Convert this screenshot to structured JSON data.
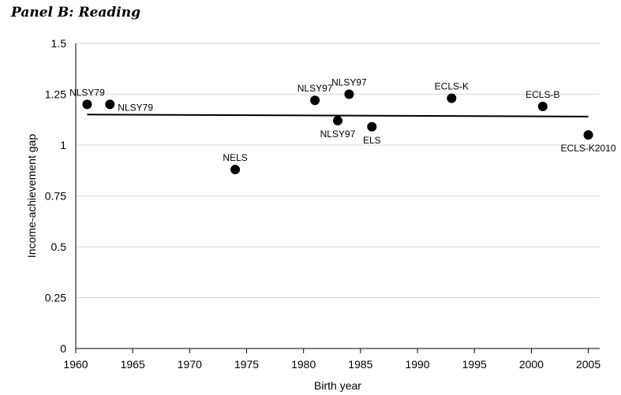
{
  "panel_title": "Panel B: Reading",
  "chart_data": {
    "type": "scatter",
    "xlabel": "Birth year",
    "ylabel": "Income-achievement gap",
    "xlim": [
      1960,
      2006
    ],
    "ylim": [
      0,
      1.5
    ],
    "grid": true,
    "x_ticks": [
      1960,
      1965,
      1970,
      1975,
      1980,
      1985,
      1990,
      1995,
      2000,
      2005
    ],
    "y_ticks": [
      0,
      0.25,
      0.5,
      0.75,
      1,
      1.25,
      1.5
    ],
    "y_tick_labels": [
      "0",
      "0.25",
      "0.5",
      "0.75",
      "1",
      "1.25",
      "1.5"
    ],
    "points": [
      {
        "label": "NLSY79",
        "x": 1961,
        "y": 1.2,
        "label_pos": "above"
      },
      {
        "label": "NLSY79",
        "x": 1963,
        "y": 1.2,
        "label_pos": "right"
      },
      {
        "label": "NELS",
        "x": 1974,
        "y": 0.88,
        "label_pos": "above"
      },
      {
        "label": "NLSY97",
        "x": 1981,
        "y": 1.22,
        "label_pos": "above"
      },
      {
        "label": "NLSY97",
        "x": 1983,
        "y": 1.12,
        "label_pos": "below"
      },
      {
        "label": "NLSY97",
        "x": 1984,
        "y": 1.25,
        "label_pos": "above"
      },
      {
        "label": "ELS",
        "x": 1986,
        "y": 1.09,
        "label_pos": "below"
      },
      {
        "label": "ECLS-K",
        "x": 1993,
        "y": 1.23,
        "label_pos": "above"
      },
      {
        "label": "ECLS-B",
        "x": 2001,
        "y": 1.19,
        "label_pos": "above"
      },
      {
        "label": "ECLS-K2010",
        "x": 2005,
        "y": 1.05,
        "label_pos": "below"
      }
    ],
    "trend_line": {
      "x": [
        1961,
        2005
      ],
      "y": [
        1.15,
        1.14
      ]
    }
  }
}
